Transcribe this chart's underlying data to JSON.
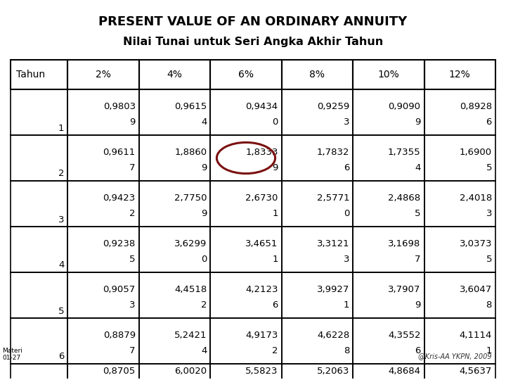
{
  "title1": "PRESENT VALUE OF AN ORDINARY ANNUITY",
  "title2": "Nilai Tunai untuk Seri Angka Akhir Tahun",
  "headers": [
    "Tahun",
    "2%",
    "4%",
    "6%",
    "8%",
    "10%",
    "12%"
  ],
  "rows": [
    [
      "1",
      "0,9803\n9",
      "0,9615\n4",
      "0,9434\n0",
      "0,9259\n3",
      "0,9090\n9",
      "0,8928\n6"
    ],
    [
      "2",
      "0,9611\n7",
      "1,8860\n9",
      "1,8333\n9",
      "1,7832\n6",
      "1,7355\n4",
      "1,6900\n5"
    ],
    [
      "3",
      "0,9423\n2",
      "2,7750\n9",
      "2,6730\n1",
      "2,5771\n0",
      "2,4868\n5",
      "2,4018\n3"
    ],
    [
      "4",
      "0,9238\n5",
      "3,6299\n0",
      "3,4651\n1",
      "3,3121\n3",
      "3,1698\n7",
      "3,0373\n5"
    ],
    [
      "5",
      "0,9057\n3",
      "4,4518\n2",
      "4,2123\n6",
      "3,9927\n1",
      "3,7907\n9",
      "3,6047\n8"
    ],
    [
      "6",
      "0,8879\n7",
      "5,2421\n4",
      "4,9173\n2",
      "4,6228\n8",
      "4,3552\n6",
      "4,1114\n1"
    ]
  ],
  "partial_row": [
    "",
    "0,8705",
    "6,0020",
    "5,5823",
    "5,2063",
    "4,8684",
    "4,5637"
  ],
  "footer_text": "@Kris-AA YKPN, 2009",
  "materi_text": "Materi\n01-27",
  "bg_color": "#ffffff",
  "title1_fontsize": 13,
  "title2_fontsize": 11.5,
  "header_fontsize": 10,
  "cell_fontsize": 9.5
}
